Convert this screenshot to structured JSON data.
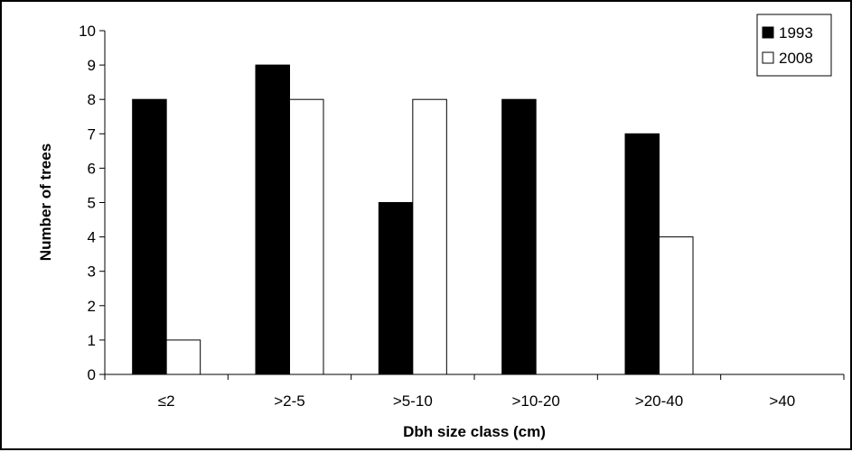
{
  "chart_data": {
    "type": "bar",
    "title": "",
    "xlabel": "Dbh size class (cm)",
    "ylabel": "Number of trees",
    "ylim": [
      0,
      10
    ],
    "yticks": [
      "0",
      "1",
      "2",
      "3",
      "4",
      "5",
      "6",
      "7",
      "8",
      "9",
      "10"
    ],
    "categories": [
      "≤2",
      ">2-5",
      ">5-10",
      ">10-20",
      ">20-40",
      ">40"
    ],
    "series": [
      {
        "name": "1993",
        "values": [
          8,
          9,
          5,
          8,
          7,
          0
        ],
        "color": "#000000"
      },
      {
        "name": "2008",
        "values": [
          1,
          8,
          8,
          0,
          4,
          0
        ],
        "color": "#ffffff"
      }
    ],
    "grid": false,
    "legend_position": "top-right"
  }
}
